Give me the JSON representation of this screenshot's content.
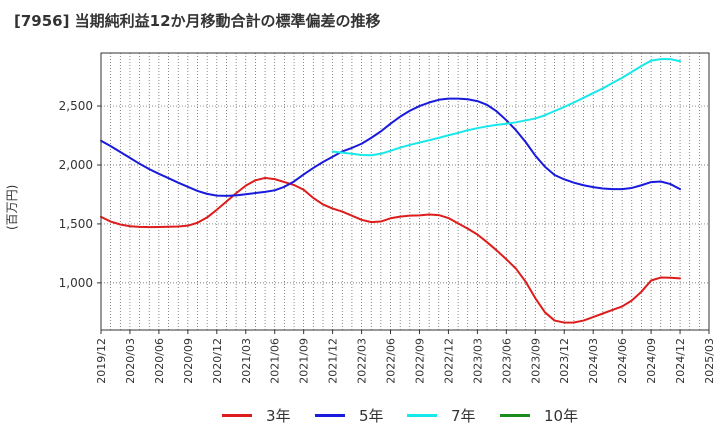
{
  "chart_data": {
    "type": "line",
    "title": "[7956]  当期純利益12か月移動合計の標準偏差の推移",
    "ylabel": "(百万円)",
    "xlabel": "",
    "ylim": [
      600,
      2950
    ],
    "yticks": [
      1000,
      1500,
      2000,
      2500
    ],
    "ytick_labels": [
      "1,000",
      "1,500",
      "2,000",
      "2,500"
    ],
    "xtick_labels": [
      "2019/12",
      "2020/03",
      "2020/06",
      "2020/09",
      "2020/12",
      "2021/03",
      "2021/06",
      "2021/09",
      "2021/12",
      "2022/03",
      "2022/06",
      "2022/09",
      "2022/12",
      "2023/03",
      "2023/06",
      "2023/09",
      "2023/12",
      "2024/03",
      "2024/06",
      "2024/09",
      "2024/12",
      "2025/03"
    ],
    "grid": true,
    "legend_position": "bottom",
    "series": [
      {
        "name": "3年",
        "color": "#dd1c1c",
        "values": [
          [
            "2019/12",
            1560
          ],
          [
            "2020/01",
            1520
          ],
          [
            "2020/02",
            1495
          ],
          [
            "2020/03",
            1480
          ],
          [
            "2020/04",
            1475
          ],
          [
            "2020/05",
            1473
          ],
          [
            "2020/06",
            1474
          ],
          [
            "2020/07",
            1476
          ],
          [
            "2020/08",
            1478
          ],
          [
            "2020/09",
            1485
          ],
          [
            "2020/10",
            1510
          ],
          [
            "2020/11",
            1555
          ],
          [
            "2020/12",
            1620
          ],
          [
            "2021/01",
            1690
          ],
          [
            "2021/02",
            1760
          ],
          [
            "2021/03",
            1825
          ],
          [
            "2021/04",
            1870
          ],
          [
            "2021/05",
            1890
          ],
          [
            "2021/06",
            1880
          ],
          [
            "2021/07",
            1855
          ],
          [
            "2021/08",
            1830
          ],
          [
            "2021/09",
            1790
          ],
          [
            "2021/10",
            1720
          ],
          [
            "2021/11",
            1665
          ],
          [
            "2021/12",
            1630
          ],
          [
            "2022/01",
            1605
          ],
          [
            "2022/02",
            1570
          ],
          [
            "2022/03",
            1535
          ],
          [
            "2022/04",
            1515
          ],
          [
            "2022/05",
            1520
          ],
          [
            "2022/06",
            1548
          ],
          [
            "2022/07",
            1562
          ],
          [
            "2022/08",
            1570
          ],
          [
            "2022/09",
            1572
          ],
          [
            "2022/10",
            1580
          ],
          [
            "2022/11",
            1575
          ],
          [
            "2022/12",
            1550
          ],
          [
            "2023/01",
            1505
          ],
          [
            "2023/02",
            1460
          ],
          [
            "2023/03",
            1410
          ],
          [
            "2023/04",
            1345
          ],
          [
            "2023/05",
            1275
          ],
          [
            "2023/06",
            1200
          ],
          [
            "2023/07",
            1120
          ],
          [
            "2023/08",
            1010
          ],
          [
            "2023/09",
            870
          ],
          [
            "2023/10",
            750
          ],
          [
            "2023/11",
            680
          ],
          [
            "2023/12",
            663
          ],
          [
            "2024/01",
            664
          ],
          [
            "2024/02",
            680
          ],
          [
            "2024/03",
            710
          ],
          [
            "2024/04",
            740
          ],
          [
            "2024/05",
            770
          ],
          [
            "2024/06",
            800
          ],
          [
            "2024/07",
            850
          ],
          [
            "2024/08",
            925
          ],
          [
            "2024/09",
            1020
          ],
          [
            "2024/10",
            1045
          ],
          [
            "2024/11",
            1043
          ],
          [
            "2024/12",
            1038
          ]
        ]
      },
      {
        "name": "5年",
        "color": "#1a1adc",
        "values": [
          [
            "2019/12",
            2205
          ],
          [
            "2020/01",
            2160
          ],
          [
            "2020/02",
            2110
          ],
          [
            "2020/03",
            2060
          ],
          [
            "2020/04",
            2010
          ],
          [
            "2020/05",
            1965
          ],
          [
            "2020/06",
            1925
          ],
          [
            "2020/07",
            1888
          ],
          [
            "2020/08",
            1850
          ],
          [
            "2020/09",
            1815
          ],
          [
            "2020/10",
            1780
          ],
          [
            "2020/11",
            1755
          ],
          [
            "2020/12",
            1740
          ],
          [
            "2021/01",
            1738
          ],
          [
            "2021/02",
            1742
          ],
          [
            "2021/03",
            1752
          ],
          [
            "2021/04",
            1762
          ],
          [
            "2021/05",
            1772
          ],
          [
            "2021/06",
            1785
          ],
          [
            "2021/07",
            1815
          ],
          [
            "2021/08",
            1860
          ],
          [
            "2021/09",
            1920
          ],
          [
            "2021/10",
            1975
          ],
          [
            "2021/11",
            2025
          ],
          [
            "2021/12",
            2070
          ],
          [
            "2022/01",
            2115
          ],
          [
            "2022/02",
            2145
          ],
          [
            "2022/03",
            2180
          ],
          [
            "2022/04",
            2230
          ],
          [
            "2022/05",
            2285
          ],
          [
            "2022/06",
            2350
          ],
          [
            "2022/07",
            2410
          ],
          [
            "2022/08",
            2460
          ],
          [
            "2022/09",
            2500
          ],
          [
            "2022/10",
            2530
          ],
          [
            "2022/11",
            2553
          ],
          [
            "2022/12",
            2563
          ],
          [
            "2023/01",
            2563
          ],
          [
            "2023/02",
            2558
          ],
          [
            "2023/03",
            2542
          ],
          [
            "2023/04",
            2510
          ],
          [
            "2023/05",
            2455
          ],
          [
            "2023/06",
            2380
          ],
          [
            "2023/07",
            2295
          ],
          [
            "2023/08",
            2195
          ],
          [
            "2023/09",
            2080
          ],
          [
            "2023/10",
            1985
          ],
          [
            "2023/11",
            1915
          ],
          [
            "2023/12",
            1878
          ],
          [
            "2024/01",
            1850
          ],
          [
            "2024/02",
            1828
          ],
          [
            "2024/03",
            1812
          ],
          [
            "2024/04",
            1800
          ],
          [
            "2024/05",
            1795
          ],
          [
            "2024/06",
            1795
          ],
          [
            "2024/07",
            1805
          ],
          [
            "2024/08",
            1828
          ],
          [
            "2024/09",
            1855
          ],
          [
            "2024/10",
            1860
          ],
          [
            "2024/11",
            1838
          ],
          [
            "2024/12",
            1795
          ]
        ]
      },
      {
        "name": "7年",
        "color": "#17e8ea",
        "values": [
          [
            "2021/12",
            2113
          ],
          [
            "2022/01",
            2105
          ],
          [
            "2022/02",
            2095
          ],
          [
            "2022/03",
            2085
          ],
          [
            "2022/04",
            2083
          ],
          [
            "2022/05",
            2095
          ],
          [
            "2022/06",
            2120
          ],
          [
            "2022/07",
            2148
          ],
          [
            "2022/08",
            2170
          ],
          [
            "2022/09",
            2190
          ],
          [
            "2022/10",
            2210
          ],
          [
            "2022/11",
            2230
          ],
          [
            "2022/12",
            2252
          ],
          [
            "2023/01",
            2272
          ],
          [
            "2023/02",
            2295
          ],
          [
            "2023/03",
            2312
          ],
          [
            "2023/04",
            2328
          ],
          [
            "2023/05",
            2340
          ],
          [
            "2023/06",
            2350
          ],
          [
            "2023/07",
            2362
          ],
          [
            "2023/08",
            2378
          ],
          [
            "2023/09",
            2395
          ],
          [
            "2023/10",
            2422
          ],
          [
            "2023/11",
            2458
          ],
          [
            "2023/12",
            2492
          ],
          [
            "2024/01",
            2530
          ],
          [
            "2024/02",
            2570
          ],
          [
            "2024/03",
            2610
          ],
          [
            "2024/04",
            2650
          ],
          [
            "2024/05",
            2695
          ],
          [
            "2024/06",
            2740
          ],
          [
            "2024/07",
            2790
          ],
          [
            "2024/08",
            2840
          ],
          [
            "2024/09",
            2885
          ],
          [
            "2024/10",
            2898
          ],
          [
            "2024/11",
            2898
          ],
          [
            "2024/12",
            2880
          ]
        ]
      },
      {
        "name": "10年",
        "color": "#1c8c1c",
        "values": []
      }
    ]
  }
}
